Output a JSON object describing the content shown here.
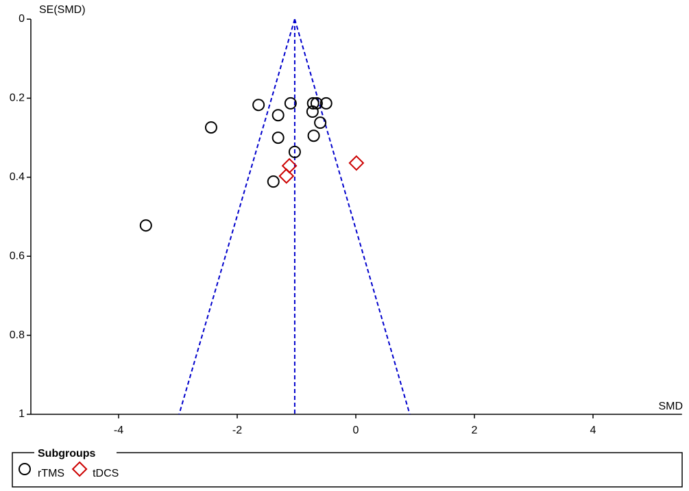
{
  "chart_data": {
    "type": "scatter",
    "y_label": "SE(SMD)",
    "x_label": "SMD",
    "xlim": [
      -5.5,
      5.5
    ],
    "xticks": [
      -4,
      -2,
      0,
      2,
      4
    ],
    "ylim": [
      0,
      1
    ],
    "yticks": [
      0,
      0.2,
      0.4,
      0.6,
      0.8,
      1
    ],
    "y_inverted": true,
    "pooled_smd": -1.03,
    "funnel_limits_at_ylim_end": [
      -2.98,
      0.91
    ],
    "line_color": "#0000cc",
    "legend_title": "Subgroups",
    "series": [
      {
        "name": "rTMS",
        "marker": "circle",
        "color": "#000000",
        "x": [
          -1.64,
          -1.1,
          -0.72,
          -0.66,
          -0.5,
          -1.31,
          -0.73,
          -0.6,
          -2.44,
          -1.31,
          -0.71,
          -1.03,
          -1.39,
          -3.54
        ],
        "values": [
          0.217,
          0.213,
          0.213,
          0.213,
          0.213,
          0.243,
          0.234,
          0.262,
          0.274,
          0.3,
          0.295,
          0.336,
          0.411,
          0.522
        ]
      },
      {
        "name": "tDCS",
        "marker": "diamond",
        "color": "#cc0000",
        "x": [
          -1.12,
          -1.17,
          0.01
        ],
        "values": [
          0.371,
          0.397,
          0.364
        ]
      }
    ]
  }
}
